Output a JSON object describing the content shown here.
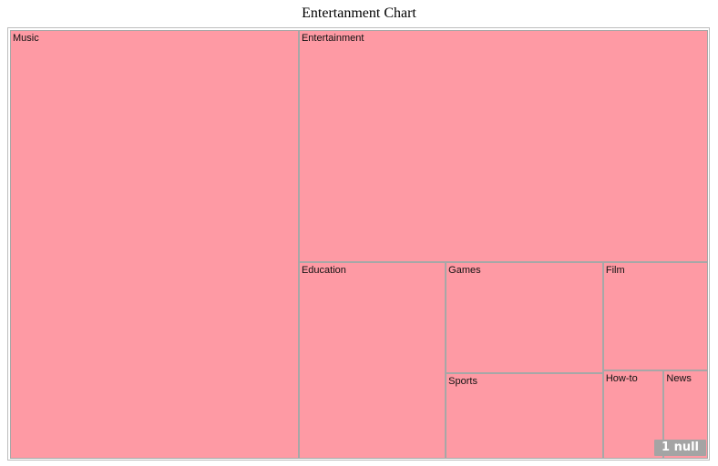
{
  "chart_data": {
    "type": "treemap",
    "title": "Entertanment Chart",
    "color": "#fe9aa4",
    "border_color": "#a7a7a7",
    "items": [
      {
        "name": "Music",
        "value": 120
      },
      {
        "name": "Entertainment",
        "value": 92
      },
      {
        "name": "Education",
        "value": 28
      },
      {
        "name": "Games",
        "value": 17
      },
      {
        "name": "Sports",
        "value": 13
      },
      {
        "name": "Film",
        "value": 11
      },
      {
        "name": "How-to",
        "value": 5.2
      },
      {
        "name": "News",
        "value": 3.8
      }
    ]
  },
  "page_indicator": "1 null"
}
